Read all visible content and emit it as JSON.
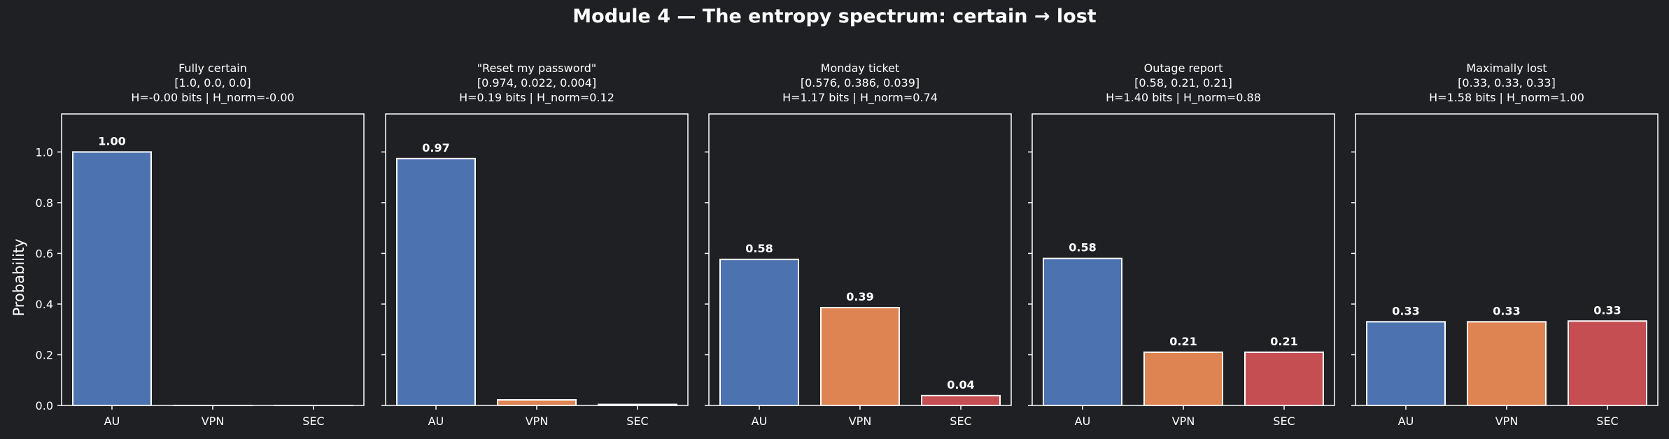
{
  "figure": {
    "title": "Module 4 — The entropy spectrum: certain → lost",
    "ylabel": "Probability",
    "background": "#1f2023",
    "bar_edge": "#ffffff",
    "axis_color": "#ffffff"
  },
  "chart_data": [
    {
      "type": "bar",
      "title": "Fully certain",
      "subtitle_vector": "[1.0, 0.0, 0.0]",
      "subtitle_entropy": "H=-0.00 bits  |  H_norm=-0.00",
      "categories": [
        "AU",
        "VPN",
        "SEC"
      ],
      "values": [
        1.0,
        0.0,
        0.0
      ],
      "data_labels": [
        "1.00",
        "",
        ""
      ],
      "colors": [
        "#4c72b0",
        "#dd8452",
        "#c44e52"
      ],
      "ylabel": "Probability",
      "ylim": [
        0,
        1.15
      ],
      "yticks": [
        0.0,
        0.2,
        0.4,
        0.6,
        0.8,
        1.0
      ],
      "ytick_labels": [
        "0.0",
        "0.2",
        "0.4",
        "0.6",
        "0.8",
        "1.0"
      ],
      "grid": false
    },
    {
      "type": "bar",
      "title": "\"Reset my password\"",
      "subtitle_vector": "[0.974, 0.022, 0.004]",
      "subtitle_entropy": "H=0.19 bits  |  H_norm=0.12",
      "categories": [
        "AU",
        "VPN",
        "SEC"
      ],
      "values": [
        0.974,
        0.022,
        0.004
      ],
      "data_labels": [
        "0.97",
        "",
        ""
      ],
      "colors": [
        "#4c72b0",
        "#dd8452",
        "#c44e52"
      ],
      "ylim": [
        0,
        1.15
      ],
      "grid": false
    },
    {
      "type": "bar",
      "title": "Monday ticket",
      "subtitle_vector": "[0.576, 0.386, 0.039]",
      "subtitle_entropy": "H=1.17 bits  |  H_norm=0.74",
      "categories": [
        "AU",
        "VPN",
        "SEC"
      ],
      "values": [
        0.576,
        0.386,
        0.039
      ],
      "data_labels": [
        "0.58",
        "0.39",
        "0.04"
      ],
      "colors": [
        "#4c72b0",
        "#dd8452",
        "#c44e52"
      ],
      "ylim": [
        0,
        1.15
      ],
      "grid": false
    },
    {
      "type": "bar",
      "title": "Outage report",
      "subtitle_vector": "[0.58, 0.21, 0.21]",
      "subtitle_entropy": "H=1.40 bits  |  H_norm=0.88",
      "categories": [
        "AU",
        "VPN",
        "SEC"
      ],
      "values": [
        0.58,
        0.21,
        0.21
      ],
      "data_labels": [
        "0.58",
        "0.21",
        "0.21"
      ],
      "colors": [
        "#4c72b0",
        "#dd8452",
        "#c44e52"
      ],
      "ylim": [
        0,
        1.15
      ],
      "grid": false
    },
    {
      "type": "bar",
      "title": "Maximally lost",
      "subtitle_vector": "[0.33, 0.33, 0.33]",
      "subtitle_entropy": "H=1.58 bits  |  H_norm=1.00",
      "categories": [
        "AU",
        "VPN",
        "SEC"
      ],
      "values": [
        0.33,
        0.33,
        0.333
      ],
      "data_labels": [
        "0.33",
        "0.33",
        "0.33"
      ],
      "colors": [
        "#4c72b0",
        "#dd8452",
        "#c44e52"
      ],
      "ylim": [
        0,
        1.15
      ],
      "grid": false
    }
  ]
}
